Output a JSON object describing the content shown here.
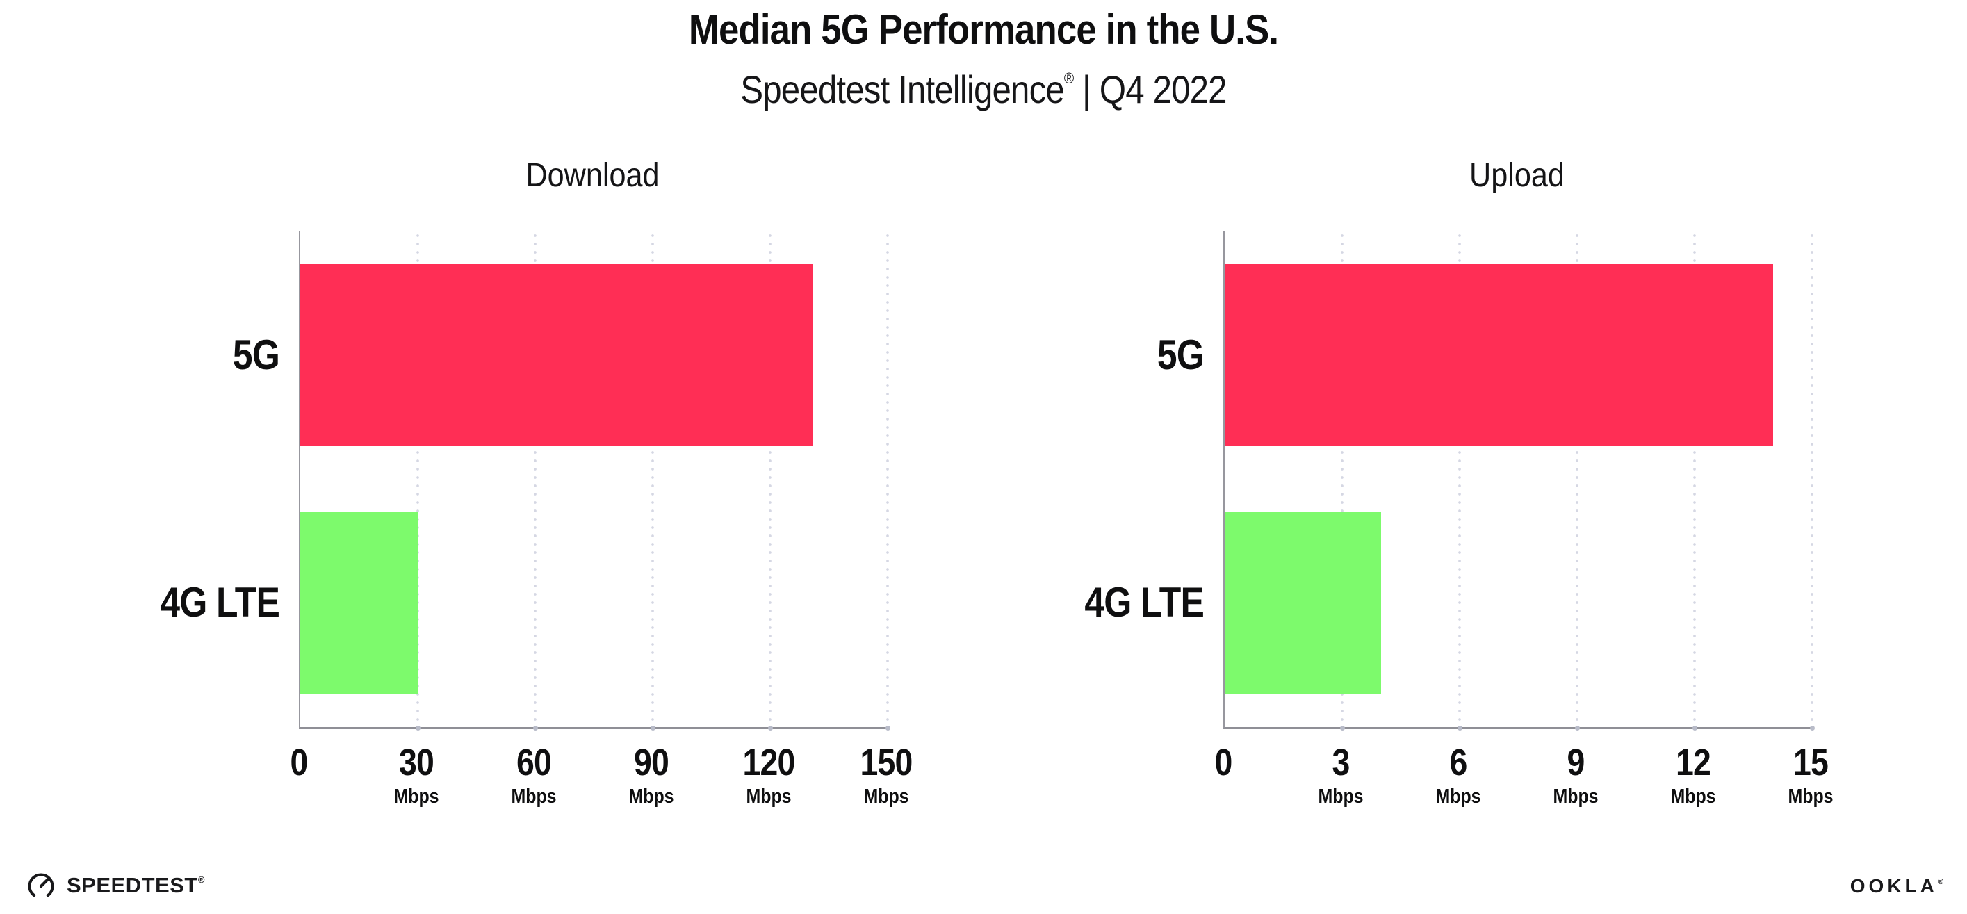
{
  "header": {
    "title": "Median 5G Performance in the U.S.",
    "subtitle_brand": "Speedtest Intelligence",
    "subtitle_reg": "®",
    "subtitle_rest": " | Q4 2022"
  },
  "chart_data": [
    {
      "type": "bar",
      "orientation": "horizontal",
      "title": "Download",
      "categories": [
        "5G",
        "4G LTE"
      ],
      "values": [
        131,
        30
      ],
      "unit": "Mbps",
      "xlim": [
        0,
        150
      ],
      "xticks": [
        0,
        30,
        60,
        90,
        120,
        150
      ],
      "grid": "dotted-vertical",
      "legend": "none",
      "bar_colors": [
        "#FF2E55",
        "#7DFA6C"
      ]
    },
    {
      "type": "bar",
      "orientation": "horizontal",
      "title": "Upload",
      "categories": [
        "5G",
        "4G LTE"
      ],
      "values": [
        14,
        4
      ],
      "unit": "Mbps",
      "xlim": [
        0,
        15
      ],
      "xticks": [
        0,
        3,
        6,
        9,
        12,
        15
      ],
      "grid": "dotted-vertical",
      "legend": "none",
      "bar_colors": [
        "#FF2E55",
        "#7DFA6C"
      ]
    }
  ],
  "colors": {
    "bar_5g": "#FF2E55",
    "bar_4g_lte": "#7DFA6C",
    "axis": "#8F8F96",
    "gridline_dots": "#D5D7E3",
    "text": "#0F0F10"
  },
  "footer": {
    "speedtest_label": "SPEEDTEST",
    "speedtest_reg": "®",
    "ookla_label": "OOKLA",
    "ookla_reg": "®"
  }
}
